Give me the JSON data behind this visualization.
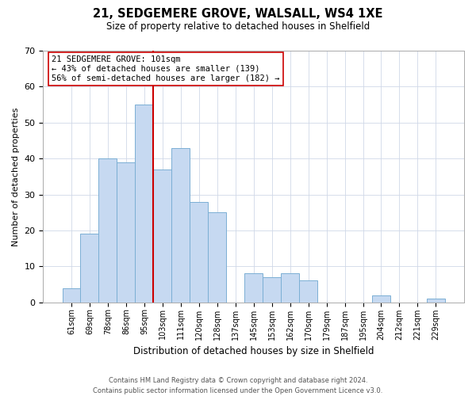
{
  "title1": "21, SEDGEMERE GROVE, WALSALL, WS4 1XE",
  "title2": "Size of property relative to detached houses in Shelfield",
  "xlabel": "Distribution of detached houses by size in Shelfield",
  "ylabel": "Number of detached properties",
  "bar_labels": [
    "61sqm",
    "69sqm",
    "78sqm",
    "86sqm",
    "95sqm",
    "103sqm",
    "111sqm",
    "120sqm",
    "128sqm",
    "137sqm",
    "145sqm",
    "153sqm",
    "162sqm",
    "170sqm",
    "179sqm",
    "187sqm",
    "195sqm",
    "204sqm",
    "212sqm",
    "221sqm",
    "229sqm"
  ],
  "bar_values": [
    4,
    19,
    40,
    39,
    55,
    37,
    43,
    28,
    25,
    0,
    8,
    7,
    8,
    6,
    0,
    0,
    0,
    2,
    0,
    0,
    1
  ],
  "bar_color": "#c6d9f1",
  "bar_edge_color": "#7bafd4",
  "vline_color": "#cc0000",
  "annotation_title": "21 SEDGEMERE GROVE: 101sqm",
  "annotation_line1": "← 43% of detached houses are smaller (139)",
  "annotation_line2": "56% of semi-detached houses are larger (182) →",
  "annotation_box_color": "#ffffff",
  "annotation_box_edge": "#cc0000",
  "ylim": [
    0,
    70
  ],
  "yticks": [
    0,
    10,
    20,
    30,
    40,
    50,
    60,
    70
  ],
  "footer1": "Contains HM Land Registry data © Crown copyright and database right 2024.",
  "footer2": "Contains public sector information licensed under the Open Government Licence v3.0."
}
